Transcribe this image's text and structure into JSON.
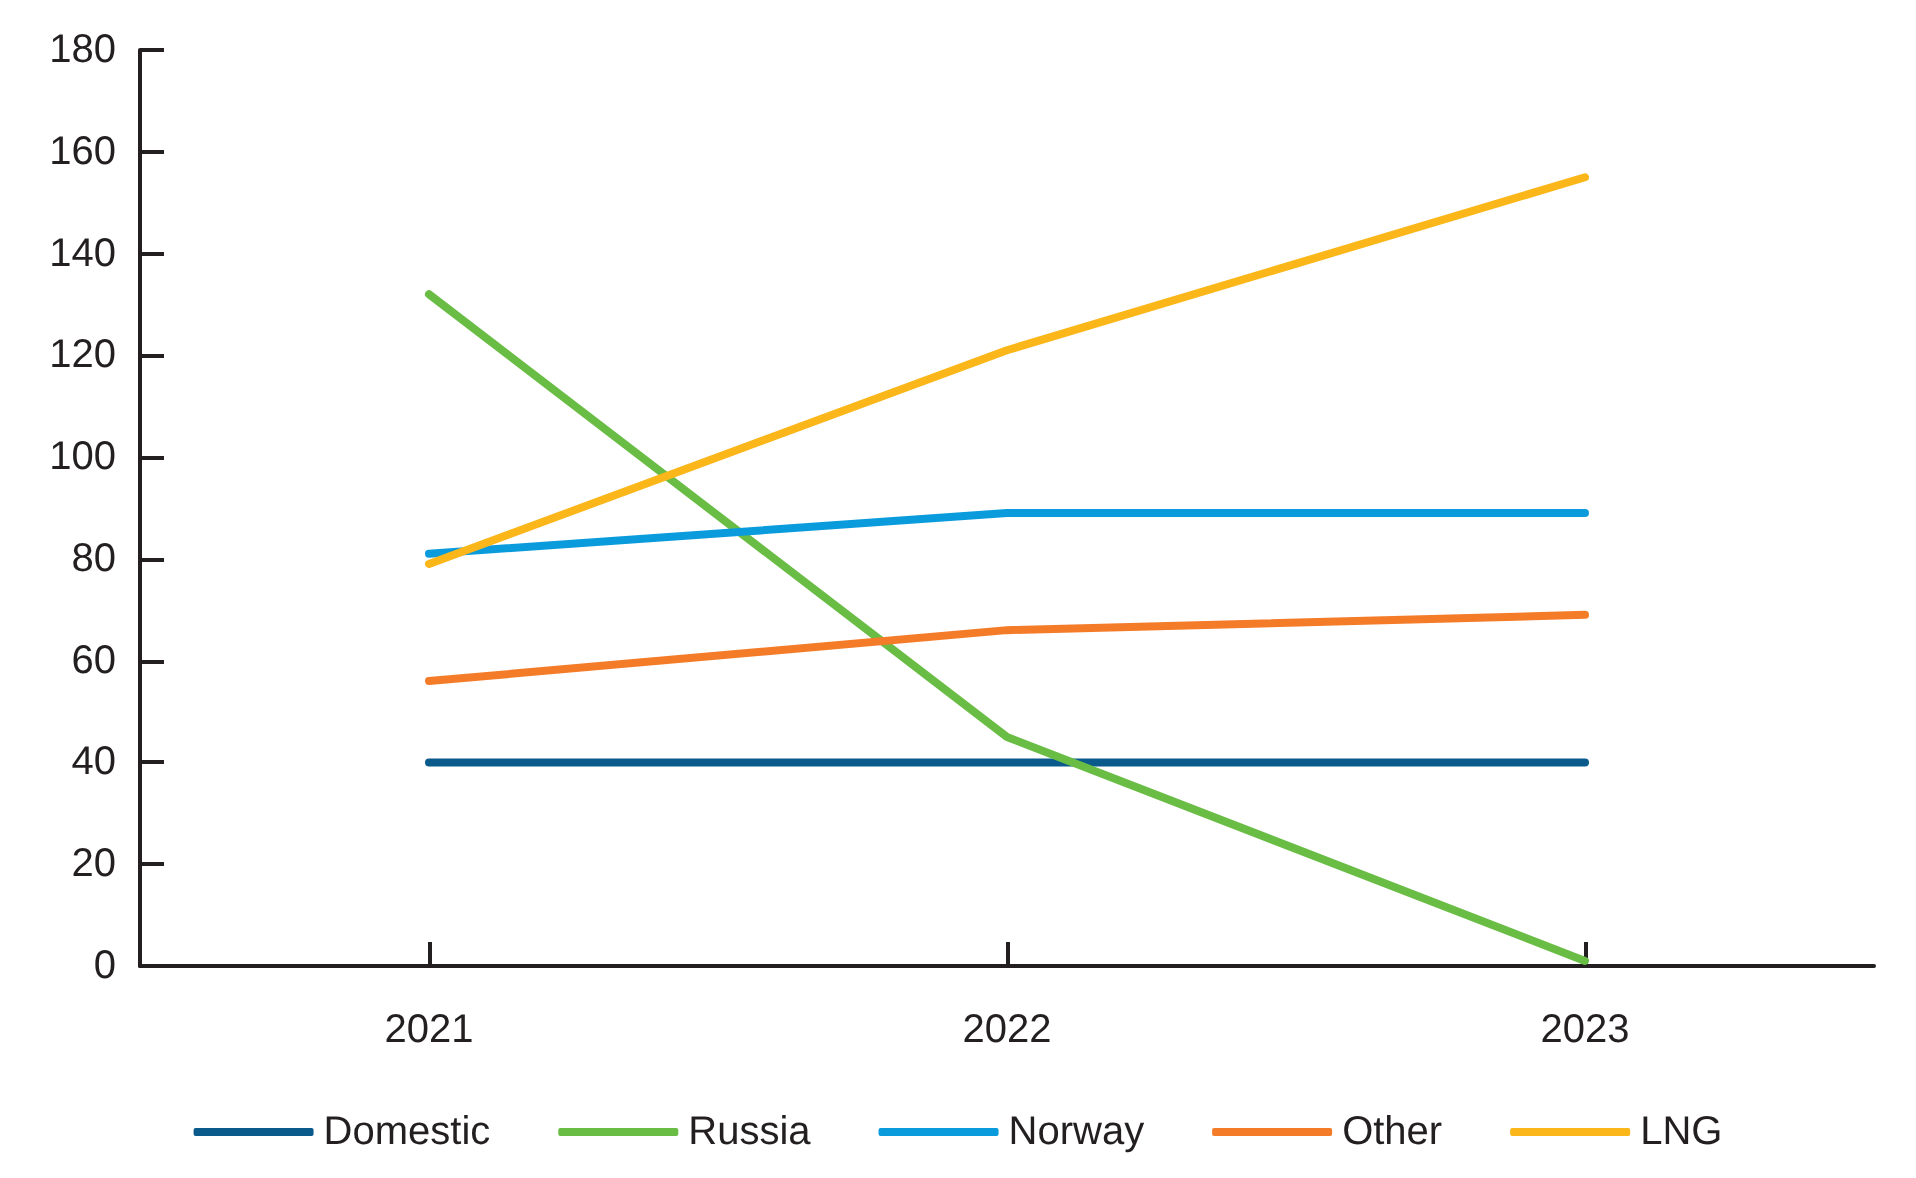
{
  "chart_data": {
    "type": "line",
    "categories": [
      "2021",
      "2022",
      "2023"
    ],
    "series": [
      {
        "name": "Domestic",
        "color": "#0b5a8c",
        "values": [
          40,
          40,
          40
        ]
      },
      {
        "name": "Russia",
        "color": "#69bd45",
        "values": [
          132,
          45,
          1
        ]
      },
      {
        "name": "Norway",
        "color": "#0a9bdc",
        "values": [
          81,
          89,
          89
        ]
      },
      {
        "name": "Other",
        "color": "#f47b28",
        "values": [
          56,
          66,
          69
        ]
      },
      {
        "name": "LNG",
        "color": "#fbb61a",
        "values": [
          79,
          121,
          155
        ]
      }
    ],
    "ylim": [
      0,
      180
    ],
    "yticks": [
      0,
      20,
      40,
      60,
      80,
      100,
      120,
      140,
      160,
      180
    ],
    "grid": false,
    "legend": "bottom",
    "marker": "none",
    "line_style": "solid"
  }
}
